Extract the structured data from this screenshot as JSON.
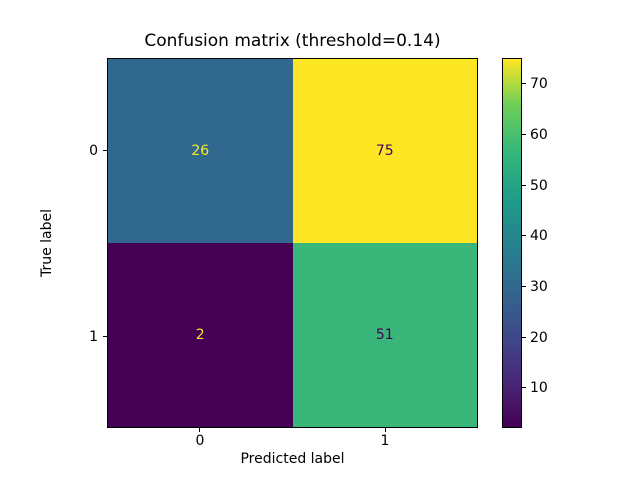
{
  "chart_data": {
    "type": "heatmap",
    "title": "Confusion matrix (threshold=0.14)",
    "xlabel": "Predicted label",
    "ylabel": "True label",
    "x_tick_labels": [
      "0",
      "1"
    ],
    "y_tick_labels": [
      "0",
      "1"
    ],
    "matrix": [
      [
        26,
        75
      ],
      [
        2,
        51
      ]
    ],
    "cell_colors": [
      [
        "#31688e",
        "#fde725"
      ],
      [
        "#440154",
        "#39b77a"
      ]
    ],
    "cell_text_colors": [
      [
        "#fde725",
        "#440154"
      ],
      [
        "#fde725",
        "#440154"
      ]
    ],
    "colormap": "viridis",
    "vmin": 2,
    "vmax": 75,
    "colorbar": {
      "ticks": [
        10,
        20,
        30,
        40,
        50,
        60,
        70
      ]
    },
    "legend_position": "colorbar-right",
    "grid": false
  }
}
